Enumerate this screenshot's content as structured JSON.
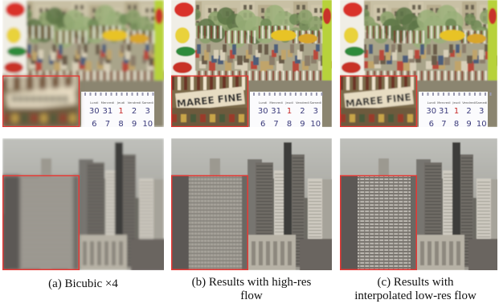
{
  "figure": {
    "captions": [
      {
        "line1": "(a) Bicubic ×4",
        "line2": ""
      },
      {
        "line1": "(b) Results with high-res",
        "line2": "flow"
      },
      {
        "line1": "(c) Results with",
        "line2": "interpolated low-res flow"
      }
    ],
    "scene_top": {
      "sign_text": "MAREE FINE",
      "calendar_weekdays": [
        "Lundi",
        "Mercredi",
        "Jeudi",
        "Vendredi",
        "Samedi"
      ],
      "calendar_row1": [
        "30",
        "31",
        "1",
        "2",
        "3"
      ],
      "calendar_row2": [
        "6",
        "7",
        "8",
        "9",
        "10"
      ]
    },
    "colors": {
      "zoom_border": "#e53935",
      "calendar_red": "#c62828",
      "calendar_blue": "#3c3c7c"
    }
  }
}
